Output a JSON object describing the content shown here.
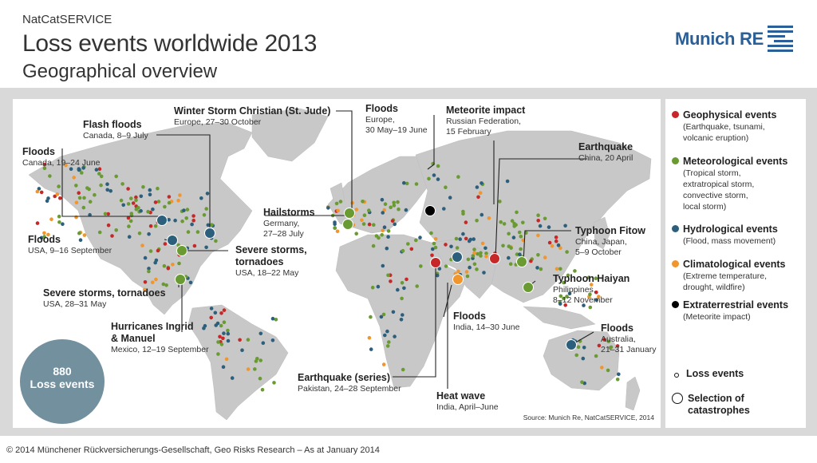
{
  "header": {
    "eyebrow": "NatCatSERVICE",
    "title": "Loss events worldwide 2013",
    "subtitle": "Geographical overview"
  },
  "logo": {
    "text": "Munich RE",
    "color": "#2a5f98"
  },
  "colors": {
    "geophysical": "#c62828",
    "meteorological": "#6a9b32",
    "hydrological": "#2c5f7c",
    "climatological": "#f0962c",
    "extraterrestrial": "#000000",
    "land": "#c8c8c8",
    "ocean": "#ffffff",
    "panel": "#d9d9d9",
    "badge": "#73909f"
  },
  "annotations": [
    {
      "id": "winter-storm-christian",
      "title": "Winter Storm Christian (St. Jude)",
      "sub": [
        "Europe, 27–30 October"
      ]
    },
    {
      "id": "floods-europe",
      "title": "Floods",
      "sub": [
        "Europe,",
        "30 May–19 June"
      ]
    },
    {
      "id": "meteorite-impact",
      "title": "Meteorite impact",
      "sub": [
        "Russian Federation,",
        "15 February"
      ]
    },
    {
      "id": "flash-floods-canada",
      "title": "Flash floods",
      "sub": [
        "Canada, 8–9 July"
      ]
    },
    {
      "id": "floods-canada",
      "title": "Floods",
      "sub": [
        "Canada, 19–24 June"
      ]
    },
    {
      "id": "earthquake-china",
      "title": "Earthquake",
      "sub": [
        "China, 20 April"
      ]
    },
    {
      "id": "hailstorms-germany",
      "title": "Hailstorms",
      "sub": [
        "Germany,",
        "27–28 July"
      ]
    },
    {
      "id": "typhoon-fitow",
      "title": "Typhoon Fitow",
      "sub": [
        "China, Japan,",
        "5–9 October"
      ]
    },
    {
      "id": "floods-usa",
      "title": "Floods",
      "sub": [
        "USA, 9–16 September"
      ]
    },
    {
      "id": "severe-storms-may",
      "title": "Severe storms, tornadoes",
      "sub": [
        "USA, 18–22 May"
      ]
    },
    {
      "id": "typhoon-haiyan",
      "title": "Typhoon Haiyan",
      "sub": [
        "Philippines,",
        "8–12 November"
      ]
    },
    {
      "id": "severe-storms-late-may",
      "title": "Severe storms, tornadoes",
      "sub": [
        "USA, 28–31 May"
      ]
    },
    {
      "id": "floods-india",
      "title": "Floods",
      "sub": [
        "India, 14–30 June"
      ]
    },
    {
      "id": "hurricanes-ingrid-manuel",
      "title": "Hurricanes Ingrid & Manuel",
      "sub": [
        "Mexico, 12–19 September"
      ]
    },
    {
      "id": "floods-australia",
      "title": "Floods",
      "sub": [
        "Australia,",
        "21–31 January"
      ]
    },
    {
      "id": "earthquake-pakistan",
      "title": "Earthquake (series)",
      "sub": [
        "Pakistan, 24–28 September"
      ]
    },
    {
      "id": "heat-wave-india",
      "title": "Heat wave",
      "sub": [
        "India, April–June"
      ]
    }
  ],
  "legend": {
    "items": [
      {
        "id": "geophysical",
        "title": "Geophysical events",
        "desc": "(Earthquake, tsunami,\nvolcanic eruption)"
      },
      {
        "id": "meteorological",
        "title": "Meteorological events",
        "desc": "(Tropical storm,\nextratropical storm,\nconvective storm,\nlocal storm)"
      },
      {
        "id": "hydrological",
        "title": "Hydrological events",
        "desc": "(Flood, mass movement)"
      },
      {
        "id": "climatological",
        "title": "Climatological events",
        "desc": "(Extreme temperature,\ndrought, wildfire)"
      },
      {
        "id": "extraterrestrial",
        "title": "Extraterrestrial events",
        "desc": "(Meteorite impact)"
      }
    ],
    "loss_events_label": "Loss events",
    "selection_label": "Selection of\ncatastrophes"
  },
  "badge": {
    "count": "880",
    "label": "Loss events"
  },
  "source": "Source: Munich Re, NatCatSERVICE, 2014",
  "footer": "© 2014 Münchener Rückversicherungs-Gesellschaft, Geo Risks Research – As at January 2014"
}
